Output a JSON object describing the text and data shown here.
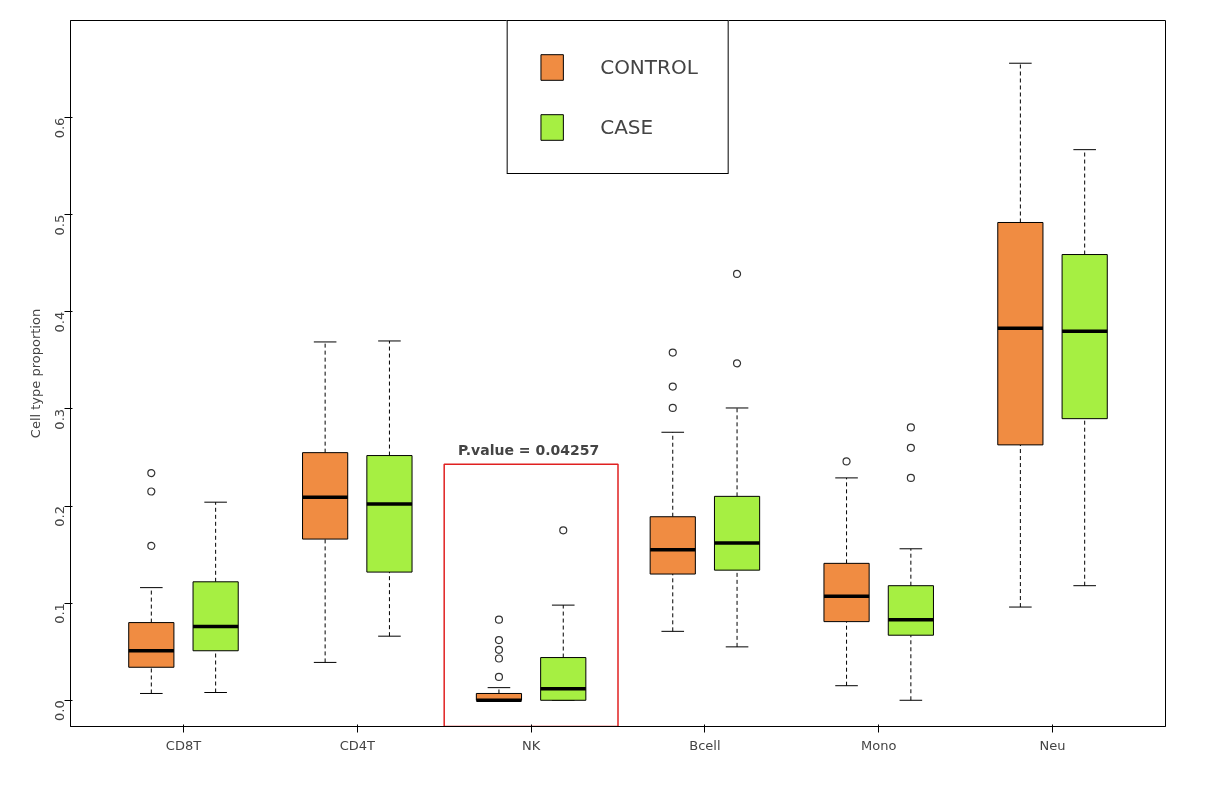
{
  "chart_data": {
    "type": "box",
    "ylabel": "Cell type proportion",
    "categories": [
      "CD8T",
      "CD4T",
      "NK",
      "Bcell",
      "Mono",
      "Neu"
    ],
    "series": [
      {
        "name": "CONTROL",
        "color": "#f08c42",
        "boxes": [
          {
            "low": 0.007,
            "q1": 0.034,
            "median": 0.051,
            "q3": 0.08,
            "high": 0.116,
            "outliers": [
              0.234,
              0.215,
              0.159
            ]
          },
          {
            "low": 0.039,
            "q1": 0.166,
            "median": 0.209,
            "q3": 0.255,
            "high": 0.369
          },
          {
            "low": 0.0,
            "q1": 0.0,
            "median": 0.0,
            "q3": 0.007,
            "high": 0.013,
            "outliers": [
              0.083,
              0.062,
              0.052,
              0.043,
              0.024
            ]
          },
          {
            "low": 0.071,
            "q1": 0.13,
            "median": 0.155,
            "q3": 0.189,
            "high": 0.276,
            "outliers": [
              0.358,
              0.323,
              0.301
            ]
          },
          {
            "low": 0.015,
            "q1": 0.081,
            "median": 0.107,
            "q3": 0.141,
            "high": 0.229,
            "outliers": [
              0.246
            ]
          },
          {
            "low": 0.096,
            "q1": 0.263,
            "median": 0.383,
            "q3": 0.492,
            "high": 0.656
          }
        ]
      },
      {
        "name": "CASE",
        "color": "#a6ef42",
        "boxes": [
          {
            "low": 0.008,
            "q1": 0.051,
            "median": 0.076,
            "q3": 0.122,
            "high": 0.204
          },
          {
            "low": 0.066,
            "q1": 0.132,
            "median": 0.202,
            "q3": 0.252,
            "high": 0.37
          },
          {
            "low": 0.0,
            "q1": 0.0,
            "median": 0.012,
            "q3": 0.044,
            "high": 0.098,
            "outliers": [
              0.175
            ]
          },
          {
            "low": 0.055,
            "q1": 0.134,
            "median": 0.162,
            "q3": 0.21,
            "high": 0.301,
            "outliers": [
              0.439,
              0.347
            ]
          },
          {
            "low": 0.0,
            "q1": 0.067,
            "median": 0.083,
            "q3": 0.118,
            "high": 0.156,
            "outliers": [
              0.281,
              0.26,
              0.229
            ]
          },
          {
            "low": 0.118,
            "q1": 0.29,
            "median": 0.38,
            "q3": 0.459,
            "high": 0.567
          }
        ]
      }
    ],
    "ylim": [
      -0.027,
      0.7
    ],
    "yticks": [
      {
        "value": 0,
        "label": "0.0"
      },
      0.1,
      0.2,
      0.3,
      0.4,
      0.5,
      0.6
    ],
    "annotations": [
      "P.value  = 0.04257"
    ],
    "grid": false,
    "legend": "top"
  }
}
